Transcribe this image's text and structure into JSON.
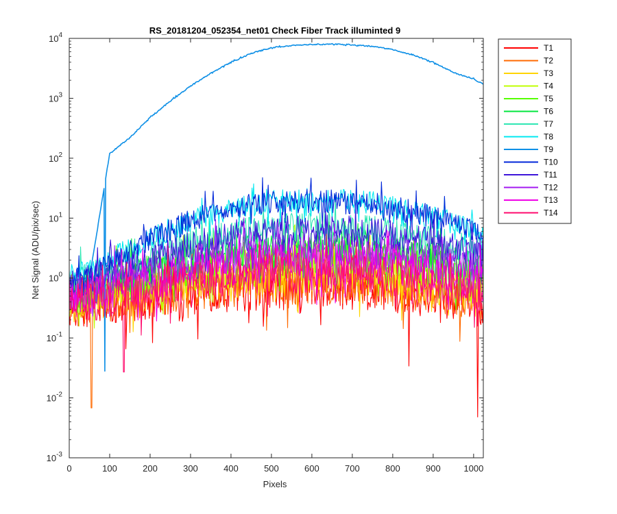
{
  "chart_data": {
    "type": "line",
    "title": "RS_20181204_052354_net01   Check Fiber     Track illuminted 9",
    "xlabel": "Pixels",
    "ylabel": "Net Signal (ADU/pix/sec)",
    "xlim": [
      0,
      1024
    ],
    "ylim": [
      0.001,
      10000
    ],
    "yscale": "log",
    "x_ticks": [
      "0",
      "100",
      "200",
      "300",
      "400",
      "500",
      "600",
      "700",
      "800",
      "900",
      "1000"
    ],
    "y_ticks": [
      {
        "base": "10",
        "exp": "-3"
      },
      {
        "base": "10",
        "exp": "-2"
      },
      {
        "base": "10",
        "exp": "-1"
      },
      {
        "base": "10",
        "exp": "0"
      },
      {
        "base": "10",
        "exp": "1"
      },
      {
        "base": "10",
        "exp": "2"
      },
      {
        "base": "10",
        "exp": "3"
      },
      {
        "base": "10",
        "exp": "4"
      }
    ],
    "grid": false,
    "legend_position": "outside-right-top",
    "x": [
      0,
      50,
      100,
      150,
      200,
      250,
      300,
      350,
      400,
      450,
      500,
      550,
      600,
      650,
      700,
      750,
      800,
      850,
      900,
      950,
      1000,
      1024
    ],
    "series": [
      {
        "name": "T1",
        "color": "#ff0000",
        "values": [
          0.3,
          0.35,
          0.38,
          0.42,
          0.46,
          0.5,
          0.55,
          0.6,
          0.63,
          0.66,
          0.68,
          0.7,
          0.71,
          0.7,
          0.68,
          0.65,
          0.6,
          0.55,
          0.5,
          0.45,
          0.4,
          0.38
        ]
      },
      {
        "name": "T2",
        "color": "#ff6a00",
        "values": [
          0.32,
          0.38,
          0.42,
          0.47,
          0.52,
          0.57,
          0.63,
          0.69,
          0.74,
          0.78,
          0.8,
          0.82,
          0.83,
          0.82,
          0.8,
          0.76,
          0.71,
          0.65,
          0.58,
          0.52,
          0.46,
          0.44
        ]
      },
      {
        "name": "T3",
        "color": "#ffd400",
        "values": [
          0.35,
          0.42,
          0.48,
          0.55,
          0.63,
          0.72,
          0.82,
          0.92,
          1.0,
          1.07,
          1.12,
          1.15,
          1.16,
          1.15,
          1.12,
          1.06,
          0.98,
          0.89,
          0.79,
          0.69,
          0.6,
          0.56
        ]
      },
      {
        "name": "T4",
        "color": "#bfff00",
        "values": [
          0.4,
          0.5,
          0.58,
          0.68,
          0.8,
          0.95,
          1.1,
          1.25,
          1.38,
          1.48,
          1.55,
          1.6,
          1.62,
          1.6,
          1.55,
          1.46,
          1.34,
          1.2,
          1.05,
          0.9,
          0.78,
          0.72
        ]
      },
      {
        "name": "T5",
        "color": "#55ff00",
        "values": [
          0.45,
          0.58,
          0.7,
          0.85,
          1.05,
          1.28,
          1.52,
          1.78,
          2.0,
          2.18,
          2.3,
          2.38,
          2.42,
          2.4,
          2.32,
          2.18,
          1.98,
          1.75,
          1.52,
          1.3,
          1.1,
          1.02
        ]
      },
      {
        "name": "T6",
        "color": "#00e63c",
        "values": [
          0.55,
          0.72,
          0.9,
          1.12,
          1.4,
          1.75,
          2.12,
          2.52,
          2.9,
          3.2,
          3.42,
          3.55,
          3.6,
          3.58,
          3.45,
          3.22,
          2.9,
          2.55,
          2.2,
          1.85,
          1.55,
          1.42
        ]
      },
      {
        "name": "T7",
        "color": "#2ee6b3",
        "values": [
          0.8,
          1.05,
          1.35,
          1.75,
          2.3,
          3.0,
          3.8,
          4.6,
          5.4,
          6.1,
          6.6,
          6.95,
          7.1,
          7.05,
          6.8,
          6.3,
          5.7,
          5.0,
          4.3,
          3.6,
          3.0,
          2.75
        ]
      },
      {
        "name": "T8",
        "color": "#00e8f0",
        "values": [
          1.1,
          1.4,
          2.0,
          3.0,
          4.5,
          6.5,
          9.0,
          11.8,
          14.5,
          16.8,
          18.5,
          19.5,
          20.0,
          19.8,
          19.0,
          17.5,
          15.5,
          13.0,
          10.8,
          8.6,
          6.4,
          5.5
        ]
      },
      {
        "name": "T9",
        "color": "#0d8fe6",
        "values": [
          0.9,
          1.0,
          120,
          220,
          480,
          900,
          1600,
          2600,
          4000,
          5600,
          7000,
          7600,
          7900,
          8000,
          7800,
          7300,
          6500,
          5300,
          4000,
          2700,
          2100,
          1700
        ]
      },
      {
        "name": "T10",
        "color": "#0026d9",
        "values": [
          0.85,
          1.15,
          1.7,
          2.8,
          4.4,
          6.4,
          8.9,
          11.6,
          14.2,
          16.4,
          18.0,
          18.9,
          19.2,
          19.0,
          18.2,
          16.8,
          14.9,
          12.6,
          10.4,
          8.4,
          6.6,
          5.8
        ]
      },
      {
        "name": "T11",
        "color": "#3d14d9",
        "values": [
          0.7,
          0.92,
          1.18,
          1.52,
          2.0,
          2.6,
          3.3,
          4.0,
          4.7,
          5.3,
          5.8,
          6.1,
          6.25,
          6.2,
          6.0,
          5.6,
          5.05,
          4.45,
          3.8,
          3.2,
          2.65,
          2.4
        ]
      },
      {
        "name": "T12",
        "color": "#a319f0",
        "values": [
          0.5,
          0.64,
          0.8,
          0.98,
          1.22,
          1.5,
          1.8,
          2.1,
          2.38,
          2.6,
          2.75,
          2.85,
          2.88,
          2.86,
          2.78,
          2.62,
          2.4,
          2.14,
          1.86,
          1.6,
          1.36,
          1.26
        ]
      },
      {
        "name": "T13",
        "color": "#f000e6",
        "values": [
          0.42,
          0.52,
          0.62,
          0.74,
          0.88,
          1.04,
          1.22,
          1.4,
          1.56,
          1.68,
          1.76,
          1.81,
          1.82,
          1.81,
          1.76,
          1.66,
          1.52,
          1.36,
          1.2,
          1.04,
          0.9,
          0.84
        ]
      },
      {
        "name": "T14",
        "color": "#ff0a6c",
        "values": [
          0.34,
          0.41,
          0.48,
          0.56,
          0.65,
          0.75,
          0.86,
          0.97,
          1.06,
          1.13,
          1.18,
          1.21,
          1.22,
          1.21,
          1.18,
          1.11,
          1.02,
          0.92,
          0.82,
          0.72,
          0.62,
          0.58
        ]
      }
    ],
    "annotations": [
      {
        "series": "T9",
        "x": 88,
        "y": 0.028,
        "note": "dip"
      },
      {
        "series": "T2",
        "x": 55,
        "y": 0.0068,
        "note": "dip"
      },
      {
        "series": "T1",
        "x": 1010,
        "y": 0.0048,
        "note": "dip"
      },
      {
        "series": "T1",
        "x": 840,
        "y": 0.034,
        "note": "dip"
      },
      {
        "series": "T14",
        "x": 135,
        "y": 0.027,
        "note": "dip"
      }
    ]
  }
}
